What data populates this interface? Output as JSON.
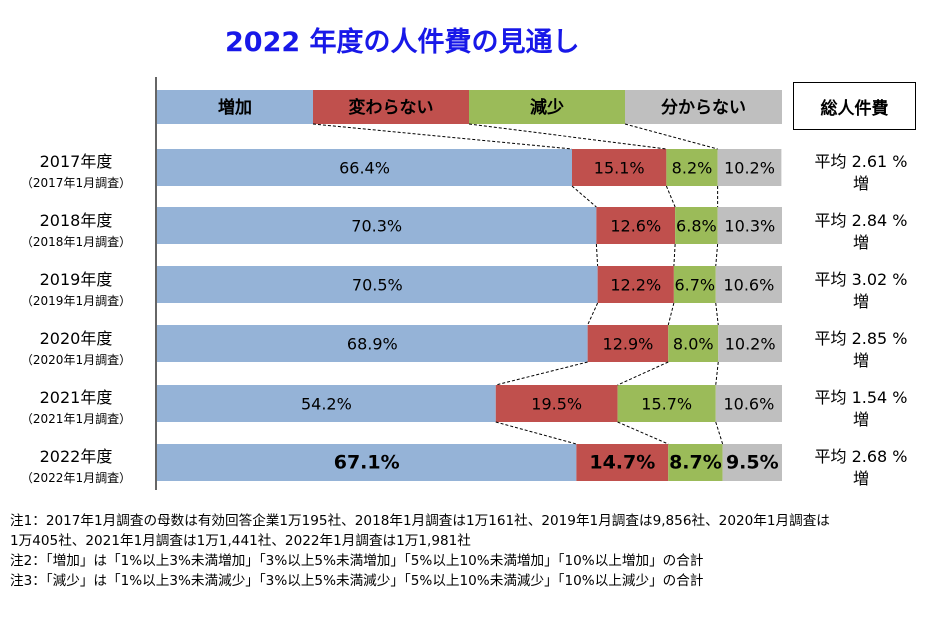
{
  "title": "2022 年度の人件費の見通し",
  "total_header": "総人件費",
  "colors": {
    "increase": "#95b3d7",
    "nochange": "#c0504d",
    "decrease": "#9bbb59",
    "unknown": "#bfbfbf",
    "title": "#1818e8"
  },
  "rows": [
    {
      "label": "2017年度",
      "sub": "（2017年1月調査）",
      "avg_line1": "平均 2.61 %",
      "avg_line2": "増"
    },
    {
      "label": "2018年度",
      "sub": "（2018年1月調査）",
      "avg_line1": "平均 2.84 %",
      "avg_line2": "増"
    },
    {
      "label": "2019年度",
      "sub": "（2019年1月調査）",
      "avg_line1": "平均 3.02 %",
      "avg_line2": "増"
    },
    {
      "label": "2020年度",
      "sub": "（2020年1月調査）",
      "avg_line1": "平均 2.85 %",
      "avg_line2": "増"
    },
    {
      "label": "2021年度",
      "sub": "（2021年1月調査）",
      "avg_line1": "平均 1.54 %",
      "avg_line2": "増"
    },
    {
      "label": "2022年度",
      "sub": "（2022年1月調査）",
      "avg_line1": "平均 2.68 %",
      "avg_line2": "増"
    }
  ],
  "chart_data": {
    "type": "bar",
    "stacked": true,
    "orientation": "horizontal",
    "title": "2022 年度の人件費の見通し",
    "categories": [
      "2017年度",
      "2018年度",
      "2019年度",
      "2020年度",
      "2021年度",
      "2022年度"
    ],
    "series": [
      {
        "name": "増加",
        "values": [
          66.4,
          70.3,
          70.5,
          68.9,
          54.2,
          67.1
        ],
        "labels": [
          "66.4%",
          "70.3%",
          "70.5%",
          "68.9%",
          "54.2%",
          "67.1%"
        ]
      },
      {
        "name": "変わらない",
        "values": [
          15.1,
          12.6,
          12.2,
          12.9,
          19.5,
          14.7
        ],
        "labels": [
          "15.1%",
          "12.6%",
          "12.2%",
          "12.9%",
          "19.5%",
          "14.7%"
        ]
      },
      {
        "name": "減少",
        "values": [
          8.2,
          6.8,
          6.7,
          8.0,
          15.7,
          8.7
        ],
        "labels": [
          "8.2%",
          "6.8%",
          "6.7%",
          "8.0%",
          "15.7%",
          "8.7%"
        ]
      },
      {
        "name": "分からない",
        "values": [
          10.2,
          10.3,
          10.6,
          10.2,
          10.6,
          9.5
        ],
        "labels": [
          "10.2%",
          "10.3%",
          "10.6%",
          "10.2%",
          "10.6%",
          "9.5%"
        ]
      }
    ],
    "legend": "top",
    "highlight_category": "2022年度"
  },
  "notes": [
    "注1：2017年1月調査の母数は有効回答企業1万195社、2018年1月調査は1万161社、2019年1月調査は9,856社、2020年1月調査は",
    "1万405社、2021年1月調査は1万1,441社、2022年1月調査は1万1,981社",
    "注2：「増加」は「1%以上3%未満増加」「3%以上5%未満増加」「5%以上10%未満増加」「10%以上増加」の合計",
    "注3：「減少」は「1%以上3%未満減少」「3%以上5%未満減少」「5%以上10%未満減少」「10%以上減少」の合計"
  ]
}
